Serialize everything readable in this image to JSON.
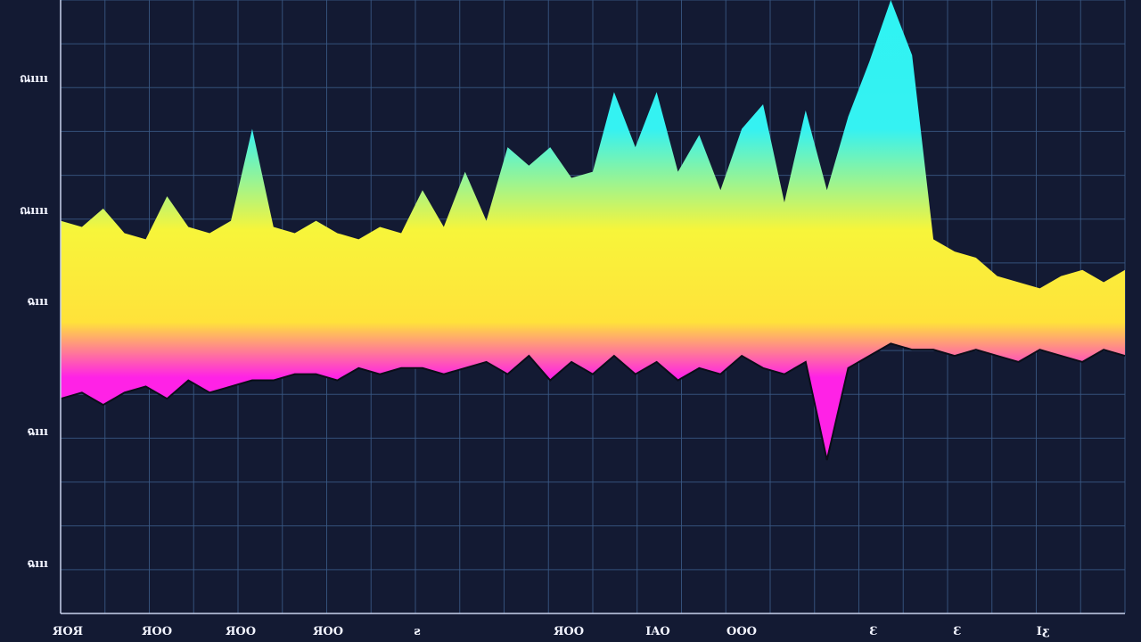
{
  "chart_data": {
    "type": "area",
    "title": "",
    "xlabel": "",
    "ylabel": "",
    "grid": true,
    "legend": "none",
    "y_tick_labels": [
      "ณıııı",
      "ณıııı",
      "ฉııı",
      "ฉııı",
      "ฉııı"
    ],
    "x_tick_labels": [
      "ЯOЯ",
      "ЯOO",
      "ЯOO",
      "ЯOO",
      "ƨ",
      "ЯOO",
      "IAO",
      "OOO",
      "Ɛ",
      "Ɛ",
      "Iƹ"
    ],
    "colors": {
      "background": "#131a33",
      "grid": "#3a5a86",
      "cyan": "#35f2f2",
      "yellow": "#f7f53a",
      "magenta": "#ff22e6",
      "floor": "#0a0d18"
    },
    "series": [
      {
        "x": [
          0,
          2,
          4,
          6,
          8,
          10,
          12,
          14,
          16,
          18,
          20,
          22,
          24,
          26,
          28,
          30,
          32,
          34,
          36,
          38,
          40,
          42,
          44,
          46,
          48,
          50,
          52,
          54,
          56,
          58,
          60,
          62,
          64,
          66,
          68,
          70,
          72,
          74,
          76,
          78,
          80,
          82,
          84,
          86,
          88,
          90,
          92,
          94,
          96,
          98,
          100
        ],
        "upper": [
          6.4,
          6.3,
          6.6,
          6.2,
          6.1,
          6.8,
          6.3,
          6.2,
          6.4,
          7.9,
          6.3,
          6.2,
          6.4,
          6.2,
          6.1,
          6.3,
          6.2,
          6.9,
          6.3,
          7.2,
          6.4,
          7.6,
          7.3,
          7.6,
          7.1,
          7.2,
          8.5,
          7.6,
          8.5,
          7.2,
          7.8,
          6.9,
          7.9,
          8.3,
          6.7,
          8.2,
          6.9,
          8.1,
          9.0,
          10.0,
          9.1,
          6.1,
          5.9,
          5.8,
          5.5,
          5.4,
          5.3,
          5.5,
          5.6,
          5.4,
          5.6
        ],
        "lower": [
          3.5,
          3.6,
          3.4,
          3.6,
          3.7,
          3.5,
          3.8,
          3.6,
          3.7,
          3.8,
          3.8,
          3.9,
          3.9,
          3.8,
          4.0,
          3.9,
          4.0,
          4.0,
          3.9,
          4.0,
          4.1,
          3.9,
          4.2,
          3.8,
          4.1,
          3.9,
          4.2,
          3.9,
          4.1,
          3.8,
          4.0,
          3.9,
          4.2,
          4.0,
          3.9,
          4.1,
          2.5,
          4.0,
          4.2,
          4.4,
          4.3,
          4.3,
          4.2,
          4.3,
          4.2,
          4.1,
          4.3,
          4.2,
          4.1,
          4.3,
          4.2
        ]
      }
    ],
    "ylim": [
      0,
      10
    ],
    "xlim": [
      0,
      100
    ]
  }
}
